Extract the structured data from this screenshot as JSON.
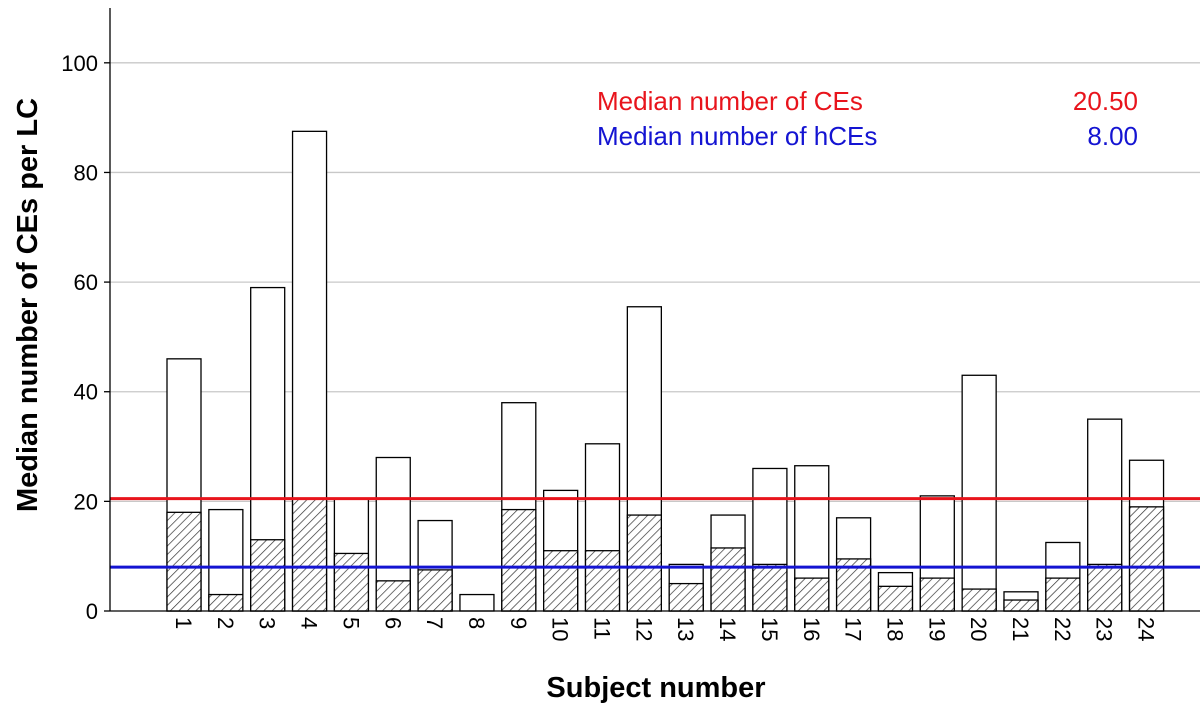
{
  "chart_data": {
    "type": "bar",
    "title": "",
    "xlabel": "Subject number",
    "ylabel": "Median number of CEs per LC",
    "ylim": [
      0,
      110
    ],
    "yticks": [
      0,
      20,
      40,
      60,
      80,
      100
    ],
    "grid": "horizontal",
    "categories": [
      "1",
      "2",
      "3",
      "4",
      "5",
      "6",
      "7",
      "8",
      "9",
      "10",
      "11",
      "12",
      "13",
      "14",
      "15",
      "16",
      "17",
      "18",
      "19",
      "20",
      "21",
      "22",
      "23",
      "24"
    ],
    "series": [
      {
        "name": "",
        "pattern": "hatched",
        "values": [
          18,
          3,
          13,
          20.5,
          10.5,
          5.5,
          7.5,
          0,
          18.5,
          11,
          11,
          17.5,
          5,
          11.5,
          8.5,
          6,
          9.5,
          4.5,
          6,
          4,
          2,
          6,
          8.5,
          19
        ]
      },
      {
        "name": "",
        "pattern": "open",
        "values": [
          46,
          18.5,
          59,
          87.5,
          20.5,
          28,
          16.5,
          3,
          38,
          22,
          30.5,
          55.5,
          8.5,
          17.5,
          26,
          26.5,
          17,
          7,
          21,
          43,
          3.5,
          12.5,
          35,
          27.5
        ]
      }
    ],
    "reference_lines": [
      {
        "label": "Median number of CEs",
        "value": 20.5,
        "value_text": "20.50",
        "color": "#e8141c"
      },
      {
        "label": "Median number of hCEs",
        "value": 8,
        "value_text": "8.00",
        "color": "#1414d2"
      }
    ],
    "legend_position": "top-right"
  }
}
